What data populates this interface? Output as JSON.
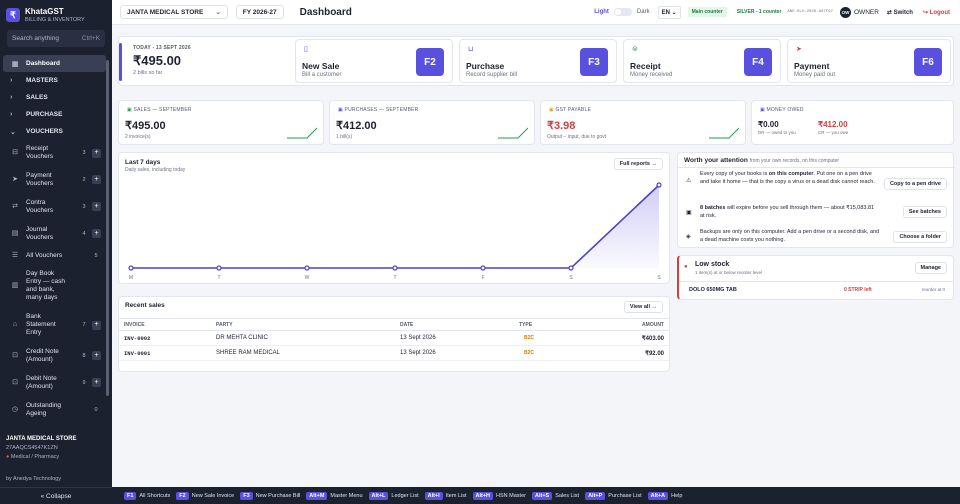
{
  "brand": {
    "name": "KhataGST",
    "sub": "BILLING & INVENTORY"
  },
  "search": {
    "placeholder": "Search anything",
    "shortcut": "Ctrl+K"
  },
  "sidebar": {
    "dashboard": "Dashboard",
    "masters": "MASTERS",
    "sales": "SALES",
    "purchase": "PURCHASE",
    "vouchers": "VOUCHERS",
    "items": [
      {
        "l1": "Receipt",
        "l2": "Vouchers",
        "count": "3"
      },
      {
        "l1": "Payment",
        "l2": "Vouchers",
        "count": "2"
      },
      {
        "l1": "Contra",
        "l2": "Vouchers",
        "count": "3"
      },
      {
        "l1": "Journal",
        "l2": "Vouchers",
        "count": "4"
      }
    ],
    "all_vouchers": "All Vouchers",
    "all_count": "5",
    "daybook": [
      "Day Book",
      "Entry — cash",
      "and bank,",
      "many days"
    ],
    "bank": [
      "Bank",
      "Statement",
      "Entry"
    ],
    "bank_count": "7",
    "credit": [
      "Credit Note",
      "(Amount)"
    ],
    "credit_count": "8",
    "debit": [
      "Debit Note",
      "(Amount)"
    ],
    "debit_count": "9",
    "outstanding": [
      "Outstanding",
      "Ageing"
    ],
    "out_count": "0",
    "store": "JANTA MEDICAL STORE",
    "gstin": "27AAQCS4547K1ZN",
    "category": "Medical / Pharmacy",
    "by": "by Anedya Technology",
    "collapse": "« Collapse"
  },
  "topbar": {
    "store": "JANTA MEDICAL STORE",
    "fy": "FY 2026-27",
    "title": "Dashboard",
    "light": "Light",
    "dark": "Dark",
    "lang": "EN",
    "counter": "Main counter",
    "plan": "SILVER - 1 counter",
    "code": "ANE-SLV-2026-A07F97",
    "owner_initial": "OW",
    "owner": "OWNER",
    "switch": "Switch",
    "logout": "Logout"
  },
  "today": {
    "label": "TODAY - 13 SEPT 2026",
    "value": "₹495.00",
    "note": "2 bills so far"
  },
  "quick": [
    {
      "title": "New Sale",
      "sub": "Bill a customer",
      "key": "F2"
    },
    {
      "title": "Purchase",
      "sub": "Record supplier bill",
      "key": "F3"
    },
    {
      "title": "Receipt",
      "sub": "Money received",
      "key": "F4"
    },
    {
      "title": "Payment",
      "sub": "Money paid out",
      "key": "F6"
    }
  ],
  "stats": {
    "sales": {
      "label": "SALES — SEPTEMBER",
      "value": "₹495.00",
      "note": "2 invoice(s)"
    },
    "purchases": {
      "label": "PURCHASES — SEPTEMBER",
      "value": "₹412.00",
      "note": "1 bill(s)"
    },
    "gst": {
      "label": "GST PAYABLE",
      "value": "₹3.98",
      "note": "Output − input, due to govt"
    },
    "owed": {
      "label": "MONEY OWED",
      "v1": "₹0.00",
      "n1": "DR — owed to you",
      "v2": "₹412.00",
      "n2": "CR — you owe"
    }
  },
  "chart_data": {
    "type": "line",
    "title": "Last 7 days",
    "subtitle": "Daily sales, including today",
    "categories": [
      "M",
      "T",
      "W",
      "T",
      "F",
      "S",
      "S"
    ],
    "values": [
      0,
      0,
      0,
      0,
      0,
      0,
      495
    ],
    "ylim": [
      0,
      495
    ],
    "button": "Full reports →"
  },
  "recent": {
    "title": "Recent sales",
    "button": "View all →",
    "headers": [
      "INVOICE",
      "PARTY",
      "DATE",
      "TYPE",
      "AMOUNT"
    ],
    "rows": [
      {
        "inv": "INV-0002",
        "party": "DR MEHTA CLINIC",
        "date": "13 Sept 2026",
        "type": "B2C",
        "amount": "₹403.00"
      },
      {
        "inv": "INV-0001",
        "party": "SHREE RAM MEDICAL",
        "date": "13 Sept 2026",
        "type": "B2C",
        "amount": "₹92.00"
      }
    ]
  },
  "attention": {
    "title": "Worth your attention",
    "sub": "from your own records, on this computer",
    "items": [
      {
        "text": "Every copy of your books is on this computer. Put one on a pen drive and take it home — that is the copy a virus or a dead disk cannot reach.",
        "btn": "Copy to a pen drive"
      },
      {
        "text": "8 batches will expire before you sell through them — about ₹15,083.81 at risk.",
        "btn": "See batches"
      },
      {
        "text": "Backups are only on this computer. Add a pen drive or a second disk, and a dead machine costs you nothing.",
        "btn": "Choose a folder"
      }
    ]
  },
  "lowstock": {
    "title": "Low stock",
    "sub": "1 item(s) at or below reorder level",
    "btn": "Manage",
    "item": "DOLO 650MG TAB",
    "qty": "0 STRIP left",
    "reorder": "reorder at 0"
  },
  "shortcuts": [
    {
      "k": "F1",
      "l": "All Shortcuts"
    },
    {
      "k": "F2",
      "l": "New Sale Invoice"
    },
    {
      "k": "F3",
      "l": "New Purchase Bill"
    },
    {
      "k": "Alt+M",
      "l": "Master Menu"
    },
    {
      "k": "Alt+L",
      "l": "Ledger List"
    },
    {
      "k": "Alt+I",
      "l": "Item List"
    },
    {
      "k": "Alt+H",
      "l": "HSN Master"
    },
    {
      "k": "Alt+S",
      "l": "Sales List"
    },
    {
      "k": "Alt+P",
      "l": "Purchase List"
    },
    {
      "k": "Alt+A",
      "l": "Help"
    }
  ]
}
